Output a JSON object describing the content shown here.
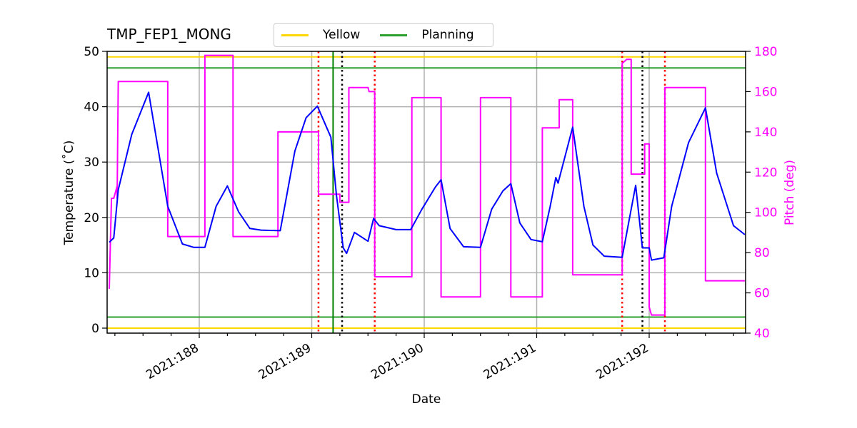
{
  "title": "TMP_FEP1_MONG",
  "legend": {
    "items": [
      {
        "label": "Yellow",
        "color": "#ffd700"
      },
      {
        "label": "Planning",
        "color": "#2ca02c"
      }
    ]
  },
  "axes": {
    "xlabel": "Date",
    "ylabel_left": "Temperature ($^\\circ$C)",
    "ylabel_left_display": "Temperature (˚C)",
    "ylabel_right": "Pitch (deg)",
    "x_ticks": [
      "2021:188",
      "2021:189",
      "2021:190",
      "2021:191",
      "2021:192"
    ],
    "y_left_ticks": [
      "0",
      "10",
      "20",
      "30",
      "40",
      "50"
    ],
    "y_right_ticks": [
      "40",
      "60",
      "80",
      "100",
      "120",
      "140",
      "160",
      "180"
    ]
  },
  "colors": {
    "temperature": "#0000ff",
    "pitch": "#ff00ff",
    "yellow_limit": "#ffd700",
    "planning_limit": "#2ca02c",
    "red_marker": "#ff0000",
    "black_marker": "#000000",
    "green_marker": "#008000",
    "grid": "#b0b0b0"
  },
  "chart_data": {
    "type": "line",
    "title": "TMP_FEP1_MONG",
    "xlabel": "Date",
    "ylabel": "Temperature (°C)",
    "ylabel_right": "Pitch (deg)",
    "xlim": [
      "2021:187.2",
      "2021:192.85"
    ],
    "ylim": [
      -1,
      50
    ],
    "ylim_right": [
      40,
      180
    ],
    "grid": true,
    "legend_position": "top center (above plot)",
    "x_tick_labels": [
      "2021:188",
      "2021:189",
      "2021:190",
      "2021:191",
      "2021:192"
    ],
    "horizontal_lines": [
      {
        "name": "Yellow",
        "axis": "left",
        "values": [
          49,
          0
        ],
        "color": "#ffd700"
      },
      {
        "name": "Planning",
        "axis": "left",
        "values": [
          47,
          2
        ],
        "color": "#2ca02c"
      }
    ],
    "vertical_markers": [
      {
        "x": 189.06,
        "style": "dotted",
        "color": "red"
      },
      {
        "x": 189.19,
        "style": "solid",
        "color": "green"
      },
      {
        "x": 189.27,
        "style": "dotted",
        "color": "black"
      },
      {
        "x": 189.56,
        "style": "dotted",
        "color": "red"
      },
      {
        "x": 191.76,
        "style": "dotted",
        "color": "red"
      },
      {
        "x": 191.94,
        "style": "dotted",
        "color": "black"
      },
      {
        "x": 192.14,
        "style": "dotted",
        "color": "red"
      }
    ],
    "series": [
      {
        "name": "Temperature",
        "axis": "left",
        "color": "#0000ff",
        "x": [
          187.2,
          187.24,
          187.28,
          187.4,
          187.55,
          187.72,
          187.85,
          187.95,
          188.05,
          188.15,
          188.25,
          188.35,
          188.45,
          188.55,
          188.72,
          188.85,
          188.95,
          189.05,
          189.17,
          189.22,
          189.28,
          189.31,
          189.38,
          189.5,
          189.55,
          189.6,
          189.75,
          189.88,
          189.98,
          190.1,
          190.15,
          190.23,
          190.35,
          190.5,
          190.6,
          190.7,
          190.77,
          190.85,
          190.95,
          191.05,
          191.12,
          191.17,
          191.19,
          191.32,
          191.42,
          191.5,
          191.6,
          191.76,
          191.84,
          191.88,
          191.94,
          192.0,
          192.02,
          192.13,
          192.2,
          192.35,
          192.5,
          192.6,
          192.75,
          192.85
        ],
        "y": [
          15.5,
          16.3,
          25,
          35,
          42.6,
          22,
          15.2,
          14.6,
          14.6,
          22,
          25.7,
          21,
          18,
          17.7,
          17.6,
          32,
          38,
          40.1,
          34.5,
          24,
          14.5,
          13.5,
          17.3,
          15.7,
          19.8,
          18.5,
          17.8,
          17.8,
          21.5,
          25.5,
          26.8,
          18,
          14.7,
          14.6,
          21.5,
          24.8,
          26.1,
          19,
          16,
          15.6,
          22,
          27.2,
          26.2,
          36.3,
          22,
          15,
          13,
          12.8,
          21.5,
          25.8,
          14.5,
          14.5,
          12.3,
          12.7,
          22,
          33.5,
          39.8,
          28,
          18.5,
          16.9
        ]
      },
      {
        "name": "Pitch",
        "axis": "right",
        "color": "#ff00ff",
        "x": [
          187.2,
          187.22,
          187.24,
          187.27,
          187.27,
          187.28,
          187.3,
          187.5,
          187.72,
          187.72,
          188.05,
          188.05,
          188.3,
          188.3,
          188.7,
          188.7,
          189.06,
          189.06,
          189.25,
          189.25,
          189.33,
          189.33,
          189.5,
          189.51,
          189.56,
          189.56,
          189.89,
          189.89,
          190.15,
          190.15,
          190.5,
          190.5,
          190.77,
          190.77,
          191.05,
          191.05,
          191.2,
          191.2,
          191.32,
          191.32,
          191.76,
          191.76,
          191.8,
          191.84,
          191.84,
          191.96,
          191.96,
          192.0,
          192.0,
          192.02,
          192.14,
          192.14,
          192.5,
          192.5,
          192.85
        ],
        "y": [
          62,
          107,
          107,
          113,
          107,
          165,
          165,
          165,
          165,
          88,
          88,
          178,
          178,
          88,
          88,
          140,
          140,
          109,
          109,
          105,
          105,
          162,
          162,
          160,
          160,
          68,
          68,
          157,
          157,
          58,
          58,
          157,
          157,
          58,
          58,
          142,
          142,
          156,
          156,
          69,
          69,
          174,
          176,
          176,
          119,
          119,
          134,
          134,
          53,
          49,
          49,
          162,
          162,
          66,
          66
        ]
      }
    ]
  }
}
